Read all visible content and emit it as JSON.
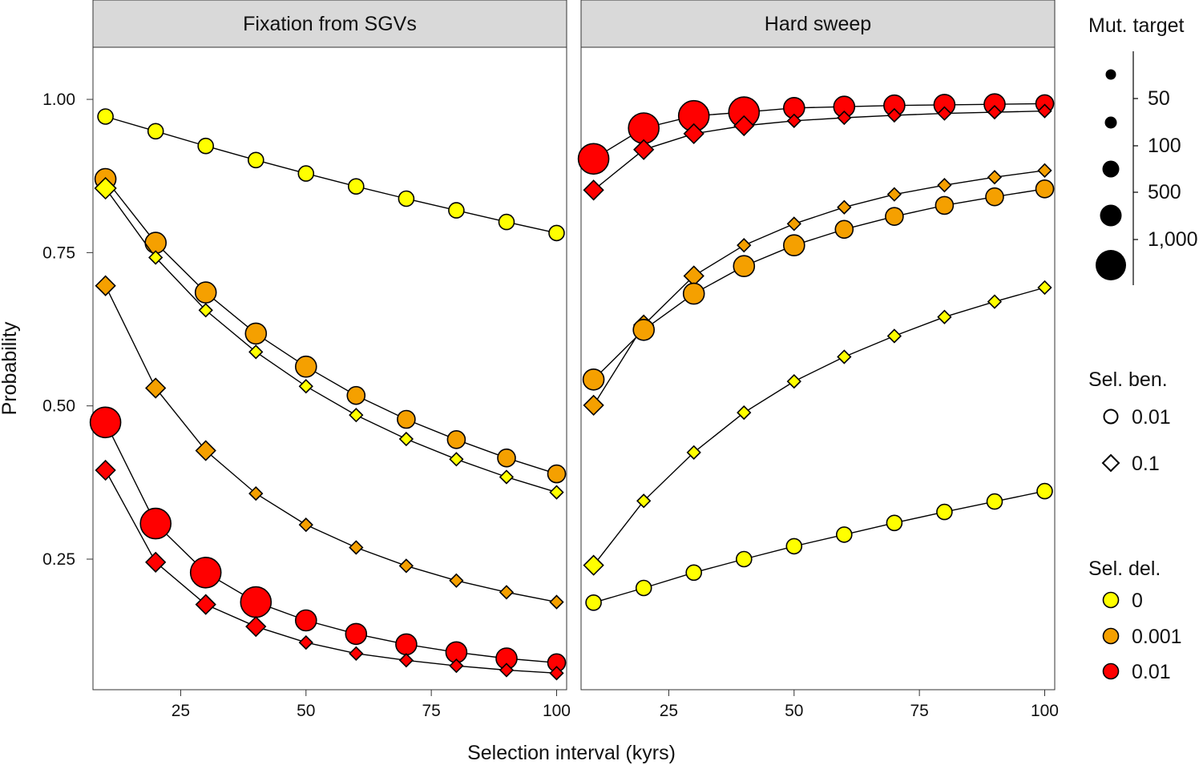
{
  "chart_data": {
    "type": "line",
    "panels": [
      {
        "title": "Fixation from SGVs",
        "series": [
          {
            "shape": "circle",
            "sel_ben": "0.01",
            "sel_del": "0",
            "color": "#ffff00",
            "x": [
              10,
              20,
              30,
              40,
              50,
              60,
              70,
              80,
              90,
              100
            ],
            "values": [
              0.972,
              0.948,
              0.924,
              0.901,
              0.879,
              0.858,
              0.838,
              0.819,
              0.8,
              0.782
            ],
            "sizes": [
              1,
              1,
              1,
              1,
              1,
              1,
              1,
              1,
              1,
              1
            ]
          },
          {
            "shape": "circle",
            "sel_ben": "0.01",
            "sel_del": "0.001",
            "color": "#f5a000",
            "x": [
              10,
              20,
              30,
              40,
              50,
              60,
              70,
              80,
              90,
              100
            ],
            "values": [
              0.87,
              0.766,
              0.685,
              0.618,
              0.564,
              0.517,
              0.478,
              0.445,
              0.415,
              0.389
            ],
            "sizes": [
              3,
              3,
              3,
              3,
              3,
              2,
              2,
              2,
              2,
              2
            ]
          },
          {
            "shape": "diamond",
            "sel_ben": "0.1",
            "sel_del": "0",
            "color": "#ffff00",
            "x": [
              10,
              20,
              30,
              40,
              50,
              60,
              70,
              80,
              90,
              100
            ],
            "values": [
              0.855,
              0.742,
              0.656,
              0.588,
              0.532,
              0.485,
              0.446,
              0.413,
              0.384,
              0.359
            ],
            "sizes": [
              3,
              1,
              1,
              1,
              1,
              1,
              1,
              1,
              1,
              1
            ]
          },
          {
            "shape": "diamond",
            "sel_ben": "0.1",
            "sel_del": "0.001",
            "color": "#f5a000",
            "x": [
              10,
              20,
              30,
              40,
              50,
              60,
              70,
              80,
              90,
              100
            ],
            "values": [
              0.696,
              0.529,
              0.427,
              0.357,
              0.306,
              0.269,
              0.239,
              0.215,
              0.196,
              0.18
            ],
            "sizes": [
              2,
              2,
              2,
              1,
              1,
              1,
              1,
              1,
              1,
              1
            ]
          },
          {
            "shape": "circle",
            "sel_ben": "0.01",
            "sel_del": "0.01",
            "color": "#ff0000",
            "x": [
              10,
              20,
              30,
              40,
              50,
              60,
              70,
              80,
              90,
              100
            ],
            "values": [
              0.473,
              0.308,
              0.228,
              0.18,
              0.15,
              0.128,
              0.111,
              0.098,
              0.088,
              0.081
            ],
            "sizes": [
              5,
              5,
              5,
              5,
              3,
              3,
              3,
              3,
              3,
              2
            ]
          },
          {
            "shape": "diamond",
            "sel_ben": "0.1",
            "sel_del": "0.01",
            "color": "#ff0000",
            "x": [
              10,
              20,
              30,
              40,
              50,
              60,
              70,
              80,
              90,
              100
            ],
            "values": [
              0.395,
              0.245,
              0.176,
              0.14,
              0.114,
              0.096,
              0.085,
              0.076,
              0.069,
              0.064
            ],
            "sizes": [
              2,
              2,
              2,
              2,
              1,
              1,
              1,
              1,
              1,
              1
            ]
          }
        ]
      },
      {
        "title": "Hard sweep",
        "series": [
          {
            "shape": "circle",
            "sel_ben": "0.01",
            "sel_del": "0.01",
            "color": "#ff0000",
            "x": [
              10,
              20,
              30,
              40,
              50,
              60,
              70,
              80,
              90,
              100
            ],
            "values": [
              0.903,
              0.953,
              0.973,
              0.979,
              0.986,
              0.988,
              0.99,
              0.991,
              0.992,
              0.993
            ],
            "sizes": [
              5,
              5,
              5,
              5,
              3,
              3,
              3,
              3,
              3,
              2
            ]
          },
          {
            "shape": "diamond",
            "sel_ben": "0.1",
            "sel_del": "0.01",
            "color": "#ff0000",
            "x": [
              10,
              20,
              30,
              40,
              50,
              60,
              70,
              80,
              90,
              100
            ],
            "values": [
              0.852,
              0.918,
              0.944,
              0.957,
              0.965,
              0.97,
              0.974,
              0.977,
              0.979,
              0.981
            ],
            "sizes": [
              2,
              2,
              2,
              2,
              1,
              1,
              1,
              1,
              1,
              1
            ]
          },
          {
            "shape": "diamond",
            "sel_ben": "0.1",
            "sel_del": "0.001",
            "color": "#f5a000",
            "x": [
              10,
              20,
              30,
              40,
              50,
              60,
              70,
              80,
              90,
              100
            ],
            "values": [
              0.501,
              0.632,
              0.712,
              0.762,
              0.797,
              0.824,
              0.845,
              0.86,
              0.873,
              0.884
            ],
            "sizes": [
              2,
              2,
              2,
              1,
              1,
              1,
              1,
              1,
              1,
              1
            ]
          },
          {
            "shape": "circle",
            "sel_ben": "0.01",
            "sel_del": "0.001",
            "color": "#f5a000",
            "x": [
              10,
              20,
              30,
              40,
              50,
              60,
              70,
              80,
              90,
              100
            ],
            "values": [
              0.543,
              0.624,
              0.683,
              0.728,
              0.762,
              0.788,
              0.809,
              0.827,
              0.841,
              0.854
            ],
            "sizes": [
              3,
              3,
              3,
              3,
              3,
              2,
              2,
              2,
              2,
              2
            ]
          },
          {
            "shape": "diamond",
            "sel_ben": "0.1",
            "sel_del": "0",
            "color": "#ffff00",
            "x": [
              10,
              20,
              30,
              40,
              50,
              60,
              70,
              80,
              90,
              100
            ],
            "values": [
              0.24,
              0.345,
              0.424,
              0.489,
              0.54,
              0.58,
              0.614,
              0.645,
              0.67,
              0.693
            ],
            "sizes": [
              2,
              1,
              1,
              1,
              1,
              1,
              1,
              1,
              1,
              1
            ]
          },
          {
            "shape": "circle",
            "sel_ben": "0.01",
            "sel_del": "0",
            "color": "#ffff00",
            "x": [
              10,
              20,
              30,
              40,
              50,
              60,
              70,
              80,
              90,
              100
            ],
            "values": [
              0.179,
              0.203,
              0.228,
              0.25,
              0.271,
              0.29,
              0.309,
              0.327,
              0.344,
              0.361
            ],
            "sizes": [
              1,
              1,
              1,
              1,
              1,
              1,
              1,
              1,
              1,
              1
            ]
          }
        ]
      }
    ],
    "x_ticks": [
      25,
      50,
      75,
      100
    ],
    "x_tick_labels": [
      "25",
      "50",
      "75",
      "100"
    ],
    "y_ticks": [
      0.25,
      0.5,
      0.75,
      1.0
    ],
    "y_tick_labels": [
      "0.25",
      "0.50",
      "0.75",
      "1.00"
    ],
    "xlim": [
      7.5,
      102
    ],
    "ylim": [
      0.037,
      1.085
    ],
    "xlabel": "Selection interval (kyrs)",
    "ylabel": "Probability",
    "legends": {
      "size": {
        "title": "Mut. target",
        "labels": [
          "50",
          "100",
          "500",
          "1,000"
        ],
        "levels": [
          1,
          2,
          3,
          4,
          5
        ]
      },
      "shape": {
        "title": "Sel. ben.",
        "items": [
          {
            "shape": "circle",
            "label": "0.01"
          },
          {
            "shape": "diamond",
            "label": "0.1"
          }
        ]
      },
      "color": {
        "title": "Sel. del.",
        "items": [
          {
            "color": "#ffff00",
            "label": "0"
          },
          {
            "color": "#f5a000",
            "label": "0.001"
          },
          {
            "color": "#ff0000",
            "label": "0.01"
          }
        ]
      }
    }
  }
}
